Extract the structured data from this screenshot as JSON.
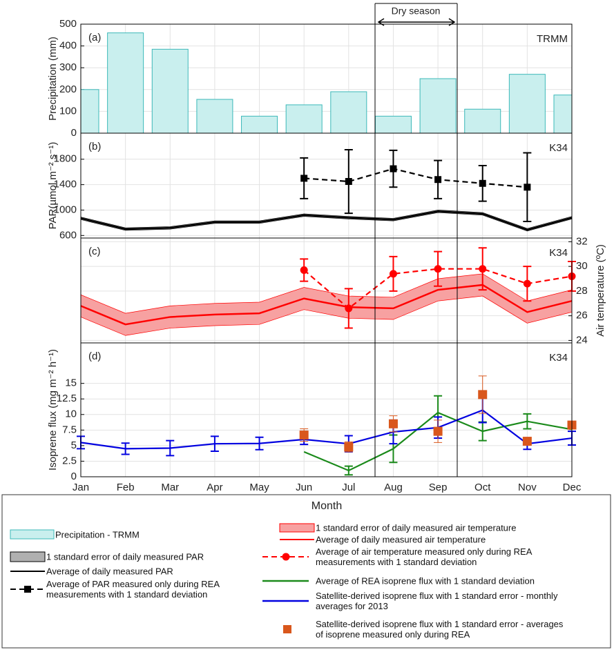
{
  "annotation": {
    "label": "Dry season"
  },
  "chart_data": [
    {
      "type": "bar",
      "panel_label": "(a)",
      "tag": "TRMM",
      "ylabel": "Precipitation (mm)",
      "ylim": [
        0,
        500
      ],
      "yticks": [
        0,
        100,
        200,
        300,
        400,
        500
      ],
      "grid": true,
      "series": [
        {
          "name": "Precipitation - TRMM",
          "color": "#c9efee",
          "edge": "#3bb8b8",
          "values": [
            200,
            460,
            385,
            155,
            78,
            130,
            190,
            78,
            250,
            110,
            270,
            175
          ]
        }
      ]
    },
    {
      "type": "line",
      "panel_label": "(b)",
      "tag": "K34",
      "ylabel": "PAR(µmol m⁻² s⁻¹)",
      "ylim": [
        560,
        2210
      ],
      "yticks": [
        600,
        1000,
        1400,
        1800
      ],
      "grid": true,
      "series": [
        {
          "name": "Average of daily measured PAR",
          "band_name": "1 standard error of daily measured PAR",
          "color": "#000000",
          "band_color": "#b0b0b0",
          "values": [
            870,
            700,
            720,
            810,
            810,
            920,
            880,
            850,
            980,
            940,
            690,
            880
          ],
          "errors": [
            20,
            20,
            20,
            20,
            20,
            20,
            20,
            20,
            20,
            20,
            20,
            20
          ]
        },
        {
          "name": "Average of PAR measured only during REA measurements with 1 standard deviation",
          "color": "#000000",
          "dashed": true,
          "marker": "square",
          "values": [
            null,
            null,
            null,
            null,
            null,
            1500,
            1450,
            1650,
            1480,
            1420,
            1360,
            null
          ],
          "errors": [
            null,
            null,
            null,
            null,
            null,
            320,
            500,
            290,
            300,
            280,
            540,
            null
          ]
        }
      ]
    },
    {
      "type": "line",
      "panel_label": "(c)",
      "tag": "K34",
      "ylabel": "Air temperature (ºC)",
      "y2lim": [
        23.8,
        32.3
      ],
      "y2ticks": [
        24,
        26,
        28,
        30,
        32
      ],
      "grid": true,
      "series": [
        {
          "name": "Average of daily measured air temperature",
          "band_name": "1 standard error of daily measured air temperature",
          "color": "#ff0000",
          "band_color": "#f7a1a1",
          "axis": "y2",
          "values": [
            26.8,
            25.3,
            25.9,
            26.1,
            26.2,
            27.4,
            26.7,
            26.6,
            28.1,
            28.5,
            26.3,
            27.2
          ],
          "errors": [
            0.9,
            0.9,
            0.9,
            0.9,
            0.9,
            0.9,
            0.9,
            0.9,
            0.9,
            0.9,
            0.9,
            0.9
          ]
        },
        {
          "name": "Average of air temperature measured only during REA measurements with 1 standard deviation",
          "color": "#ff0000",
          "dashed": true,
          "marker": "circle",
          "axis": "y2",
          "values": [
            null,
            null,
            null,
            null,
            null,
            29.7,
            26.6,
            29.4,
            29.8,
            29.8,
            28.6,
            29.2
          ],
          "errors": [
            null,
            null,
            null,
            null,
            null,
            0.9,
            1.6,
            1.4,
            1.4,
            1.7,
            1.4,
            1.2
          ]
        }
      ]
    },
    {
      "type": "line",
      "panel_label": "(d)",
      "tag": "K34",
      "ylabel": "Isoprene flux (mg m⁻² h⁻¹)",
      "xlabel": "Month",
      "categories": [
        "Jan",
        "Feb",
        "Mar",
        "Apr",
        "May",
        "Jun",
        "Jul",
        "Aug",
        "Sep",
        "Oct",
        "Nov",
        "Dec"
      ],
      "ylim": [
        0,
        21.5
      ],
      "yticks": [
        0,
        2.5,
        5,
        7.5,
        10,
        12.5,
        15
      ],
      "grid": true,
      "series": [
        {
          "name": "Average of REA isoprene flux with 1 standard deviation",
          "color": "#1a8a1a",
          "values": [
            null,
            null,
            null,
            null,
            null,
            4,
            1,
            4.5,
            10.3,
            7.3,
            8.9,
            7.6
          ],
          "errors": [
            null,
            null,
            null,
            null,
            null,
            null,
            0.7,
            2.2,
            2.7,
            1.5,
            1.2,
            null
          ]
        },
        {
          "name": "Satellite-derived isoprene flux with 1 standard error - monthly averages for 2013",
          "color": "#0000e0",
          "values": [
            5.5,
            4.5,
            4.6,
            5.3,
            5.35,
            6,
            5.3,
            7.2,
            7.9,
            10.7,
            5.3,
            6.2
          ],
          "errors": [
            1,
            0.9,
            1.2,
            1.2,
            1,
            0.8,
            1.3,
            1.9,
            1.7,
            2,
            0.9,
            1.1
          ]
        },
        {
          "name": "Satellite-derived isoprene flux with 1 standard error - averages of isoprene measured only during REA",
          "color": "#d9571c",
          "marker": "square",
          "line": false,
          "values": [
            null,
            null,
            null,
            null,
            null,
            6.7,
            4.8,
            8.5,
            7.3,
            13.2,
            5.7,
            8.3
          ],
          "errors": [
            null,
            null,
            null,
            null,
            null,
            1,
            0.8,
            1.3,
            1.8,
            3,
            null,
            null
          ]
        }
      ]
    }
  ]
}
